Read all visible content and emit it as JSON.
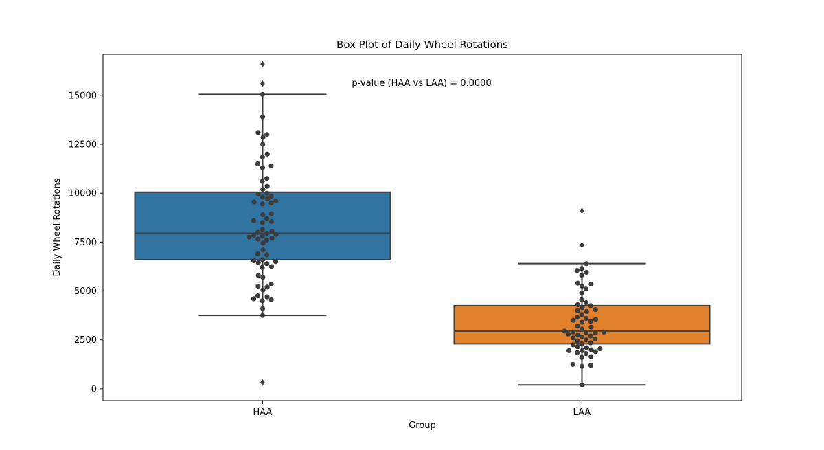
{
  "chart_data": {
    "type": "box",
    "title": "Box Plot of Daily Wheel Rotations",
    "xlabel": "Group",
    "ylabel": "Daily Wheel Rotations",
    "annotation": "p-value (HAA vs LAA) = 0.0000",
    "categories": [
      "HAA",
      "LAA"
    ],
    "ylim": [
      -600,
      17100
    ],
    "yticks": [
      0,
      2500,
      5000,
      7500,
      10000,
      12500,
      15000
    ],
    "grid": false,
    "colors": {
      "HAA": "#3274a1",
      "LAA": "#e1812c",
      "points": "#3b3b3b",
      "lines": "#3f3f3f"
    },
    "boxes": [
      {
        "group": "HAA",
        "q1": 6600,
        "median": 7950,
        "q3": 10050,
        "whisker_low": 3750,
        "whisker_high": 15050,
        "outliers": [
          16600,
          15600,
          330
        ],
        "points": [
          15050,
          13900,
          13100,
          13000,
          12850,
          12500,
          12000,
          11850,
          11500,
          11400,
          11300,
          10750,
          10600,
          10350,
          10200,
          10000,
          9950,
          9850,
          9800,
          9700,
          9600,
          9550,
          9500,
          9450,
          8950,
          8900,
          8700,
          8600,
          8550,
          8500,
          8150,
          8050,
          8000,
          7950,
          7900,
          7850,
          7800,
          7750,
          7700,
          7650,
          7600,
          7450,
          7100,
          6900,
          6850,
          6600,
          6550,
          6500,
          6450,
          6400,
          6250,
          6200,
          5800,
          5700,
          5350,
          5250,
          5200,
          5050,
          4750,
          4700,
          4600,
          4550,
          4500,
          4100,
          3750
        ]
      },
      {
        "group": "LAA",
        "q1": 2300,
        "median": 2950,
        "q3": 4250,
        "whisker_low": 200,
        "whisker_high": 6400,
        "outliers": [
          9100,
          7350
        ],
        "points": [
          6400,
          6150,
          6050,
          5950,
          5800,
          5400,
          5350,
          5250,
          5100,
          4900,
          4550,
          4400,
          4300,
          4250,
          4150,
          4050,
          4000,
          3950,
          3800,
          3650,
          3600,
          3550,
          3500,
          3450,
          3400,
          3200,
          3150,
          3050,
          2950,
          2900,
          2900,
          2850,
          2850,
          2800,
          2750,
          2700,
          2650,
          2600,
          2550,
          2500,
          2450,
          2350,
          2300,
          2250,
          2150,
          2100,
          2050,
          2000,
          1950,
          1950,
          1900,
          1850,
          1800,
          1650,
          1600,
          1250,
          1200,
          1150,
          200
        ]
      }
    ]
  }
}
